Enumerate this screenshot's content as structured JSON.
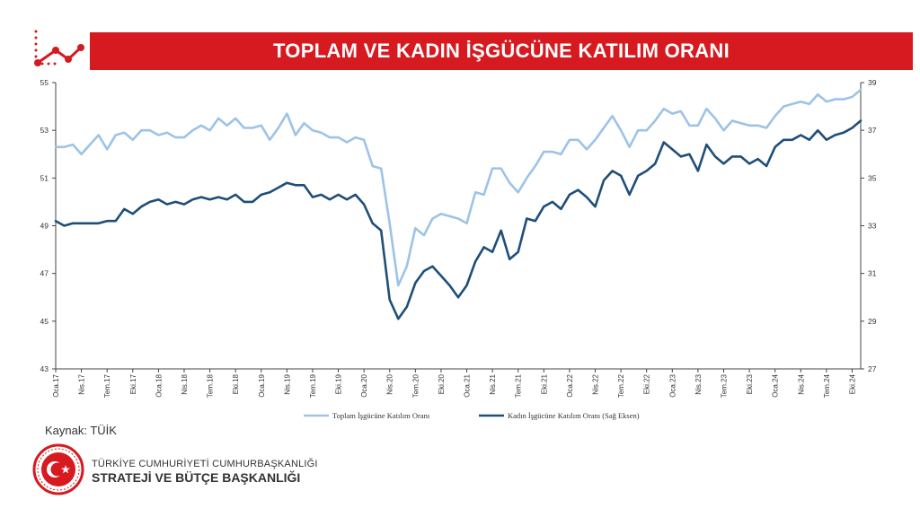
{
  "header": {
    "title": "TOPLAM VE KADIN İŞGÜCÜNE KATILIM ORANI",
    "icon": "trend-line-icon"
  },
  "footer": {
    "source": "Kaynak: TÜİK",
    "org_line1": "TÜRKİYE CUMHURİYETİ CUMHURBAŞKANLIĞI",
    "org_line2": "STRATEJİ VE BÜTÇE BAŞKANLIĞI",
    "seal": "presidency-seal-icon"
  },
  "colors": {
    "title_bg": "#d71920",
    "series_total": "#9dc3e6",
    "series_women": "#1f4e79"
  },
  "chart_data": {
    "type": "line",
    "title": "TOPLAM VE KADIN İŞGÜCÜNE KATILIM ORANI",
    "xlabel": "",
    "ylabel_left": "",
    "ylabel_right": "",
    "ylim_left": [
      43,
      55
    ],
    "ylim_right": [
      27,
      39
    ],
    "yticks_left": [
      43,
      45,
      47,
      49,
      51,
      53,
      55
    ],
    "yticks_right": [
      27,
      29,
      31,
      33,
      35,
      37,
      39
    ],
    "grid": false,
    "legend_position": "bottom",
    "x_tick_labels": [
      "Oca.17",
      "Nis.17",
      "Tem.17",
      "Eki.17",
      "Oca.18",
      "Nis.18",
      "Tem.18",
      "Eki.18",
      "Oca.19",
      "Nis.19",
      "Tem.19",
      "Eki.19",
      "Oca.20",
      "Nis.20",
      "Tem.20",
      "Eki.20",
      "Oca.21",
      "Nis.21",
      "Tem.21",
      "Eki.21",
      "Oca.22",
      "Nis.22",
      "Tem.22",
      "Eki.22",
      "Oca.23",
      "Nis.23",
      "Tem.23",
      "Eki.23",
      "Oca.24",
      "Nis.24",
      "Tem.24",
      "Eki.24"
    ],
    "series": [
      {
        "name": "Toplam İşgücüne Katılım Oranı",
        "axis": "left",
        "values": [
          52.3,
          52.3,
          52.4,
          52.0,
          52.4,
          52.8,
          52.2,
          52.8,
          52.9,
          52.6,
          53.0,
          53.0,
          52.8,
          52.9,
          52.7,
          52.7,
          53.0,
          53.2,
          53.0,
          53.5,
          53.2,
          53.5,
          53.1,
          53.1,
          53.2,
          52.6,
          53.1,
          53.7,
          52.8,
          53.3,
          53.0,
          52.9,
          52.7,
          52.7,
          52.5,
          52.7,
          52.6,
          51.5,
          51.4,
          49.1,
          46.5,
          47.3,
          48.9,
          48.6,
          49.3,
          49.5,
          49.4,
          49.3,
          49.1,
          50.4,
          50.3,
          51.4,
          51.4,
          50.8,
          50.4,
          51.0,
          51.5,
          52.1,
          52.1,
          52.0,
          52.6,
          52.6,
          52.2,
          52.6,
          53.1,
          53.6,
          53.0,
          52.3,
          53.0,
          53.0,
          53.4,
          53.9,
          53.7,
          53.8,
          53.2,
          53.2,
          53.9,
          53.5,
          53.0,
          53.4,
          53.3,
          53.2,
          53.2,
          53.1,
          53.6,
          54.0,
          54.1,
          54.2,
          54.1,
          54.5,
          54.2,
          54.3,
          54.3,
          54.4,
          54.7
        ]
      },
      {
        "name": "Kadın İşgücüne Katılım Oranı (Sağ Eksen)",
        "axis": "right",
        "values": [
          33.2,
          33.0,
          33.1,
          33.1,
          33.1,
          33.1,
          33.2,
          33.2,
          33.7,
          33.5,
          33.8,
          34.0,
          34.1,
          33.9,
          34.0,
          33.9,
          34.1,
          34.2,
          34.1,
          34.2,
          34.1,
          34.3,
          34.0,
          34.0,
          34.3,
          34.4,
          34.6,
          34.8,
          34.7,
          34.7,
          34.2,
          34.3,
          34.1,
          34.3,
          34.1,
          34.3,
          33.9,
          33.1,
          32.8,
          29.9,
          29.1,
          29.6,
          30.6,
          31.1,
          31.3,
          30.9,
          30.5,
          30.0,
          30.5,
          31.5,
          32.1,
          31.9,
          32.8,
          31.6,
          31.9,
          33.3,
          33.2,
          33.8,
          34.0,
          33.7,
          34.3,
          34.5,
          34.2,
          33.8,
          34.9,
          35.3,
          35.1,
          34.3,
          35.1,
          35.3,
          35.6,
          36.5,
          36.2,
          35.9,
          36.0,
          35.3,
          36.4,
          35.9,
          35.6,
          35.9,
          35.9,
          35.6,
          35.8,
          35.5,
          36.3,
          36.6,
          36.6,
          36.8,
          36.6,
          37.0,
          36.6,
          36.8,
          36.9,
          37.1,
          37.4
        ]
      }
    ]
  }
}
